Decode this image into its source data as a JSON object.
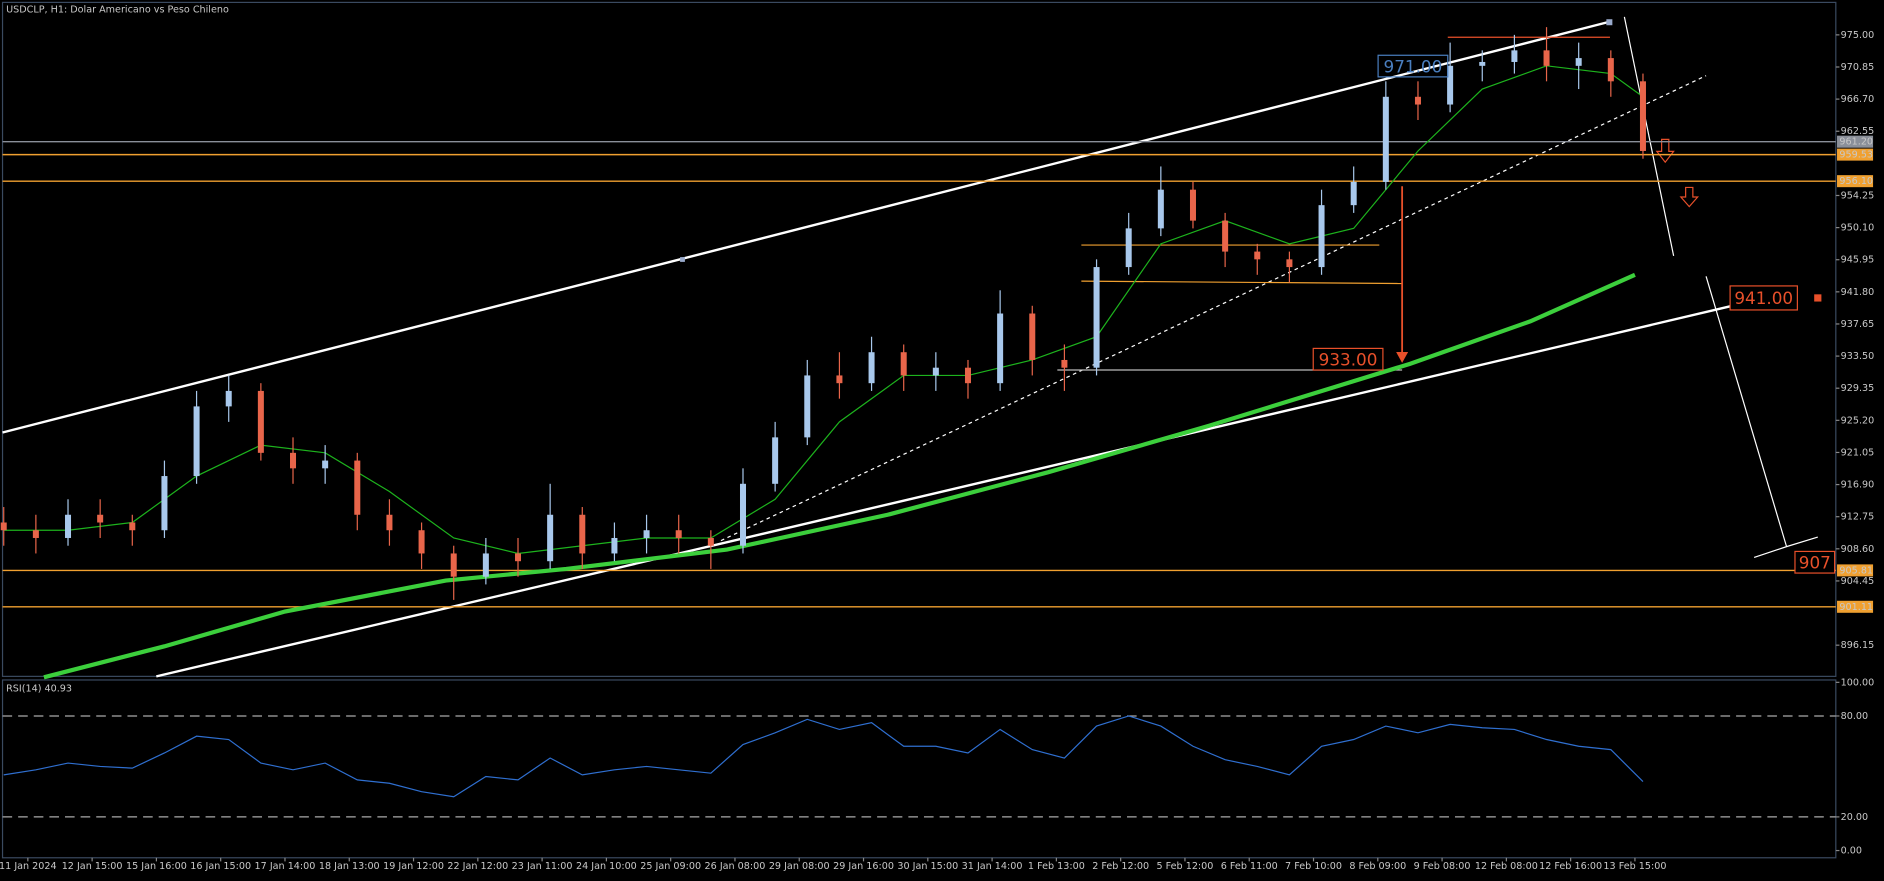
{
  "header": {
    "title": "USDCLP, H1:  Dolar Americano vs Peso Chileno"
  },
  "chart_data": [
    {
      "type": "candlestick",
      "x": [
        0,
        4,
        8,
        12,
        16,
        20,
        24,
        28,
        32,
        36,
        40,
        44,
        48,
        52,
        56,
        60,
        64,
        68,
        72,
        76,
        80,
        84,
        88,
        92,
        96,
        100,
        104,
        108,
        112,
        116,
        120,
        124,
        128,
        132,
        136,
        140,
        144,
        148,
        152,
        156,
        160,
        164,
        168,
        172,
        176,
        180,
        184,
        188,
        192,
        196,
        200,
        204
      ],
      "open": [
        912,
        911,
        910,
        913,
        912,
        911,
        918,
        927,
        929,
        921,
        919,
        920,
        913,
        911,
        908,
        905,
        908,
        907,
        913,
        908,
        910,
        911,
        910,
        909,
        917,
        923,
        931,
        930,
        934,
        931,
        932,
        930,
        939,
        933,
        932,
        945,
        950,
        955,
        951,
        947,
        946,
        945,
        953,
        956,
        967,
        966,
        971,
        971.5,
        973,
        971,
        972,
        969
      ],
      "high": [
        914,
        913,
        915,
        915,
        913,
        920,
        929,
        931,
        930,
        923,
        922,
        921,
        915,
        912,
        909,
        910,
        910,
        917,
        914,
        912,
        913,
        913,
        911,
        919,
        925,
        933,
        934,
        936,
        935,
        934,
        933,
        942,
        940,
        935,
        946,
        952,
        958,
        956,
        952,
        948,
        947,
        955,
        958,
        969,
        969,
        974,
        973,
        975,
        976,
        974,
        973,
        970
      ],
      "low": [
        909,
        908,
        909,
        910,
        909,
        910,
        917,
        925,
        920,
        917,
        917,
        911,
        909,
        906,
        902,
        904,
        905,
        906,
        906,
        907,
        908,
        908,
        906,
        908,
        916,
        922,
        928,
        929,
        929,
        929,
        928,
        929,
        931,
        929,
        931,
        944,
        949,
        950,
        945,
        944,
        943,
        944,
        952,
        955,
        964,
        965,
        969,
        970,
        969,
        968,
        967,
        959
      ],
      "close": [
        911,
        910,
        913,
        912,
        911,
        918,
        927,
        929,
        921,
        919,
        920,
        913,
        911,
        908,
        905,
        908,
        907,
        913,
        908,
        910,
        911,
        910,
        909,
        917,
        923,
        931,
        930,
        934,
        931,
        932,
        930,
        939,
        933,
        932,
        945,
        950,
        955,
        951,
        947,
        946,
        945,
        953,
        956,
        967,
        966,
        971,
        971.5,
        973,
        971,
        972,
        969,
        960
      ],
      "up_color": "#a8c8ec",
      "down_color": "#e8654a",
      "xlim": [
        0,
        228
      ],
      "ylim": [
        892.12,
        979.04
      ],
      "yticks": [
        {
          "value": 975,
          "label": "975.00"
        },
        {
          "value": 970.85,
          "label": "970.85"
        },
        {
          "value": 966.7,
          "label": "966.70"
        },
        {
          "value": 962.55,
          "label": "962.55"
        },
        {
          "value": 954.25,
          "label": "954.25"
        },
        {
          "value": 950.1,
          "label": "950.10"
        },
        {
          "value": 945.95,
          "label": "945.95"
        },
        {
          "value": 941.8,
          "label": "941.80"
        },
        {
          "value": 937.65,
          "label": "937.65"
        },
        {
          "value": 933.5,
          "label": "933.50"
        },
        {
          "value": 929.35,
          "label": "929.35"
        },
        {
          "value": 925.2,
          "label": "925.20"
        },
        {
          "value": 921.05,
          "label": "921.05"
        },
        {
          "value": 916.9,
          "label": "916.90"
        },
        {
          "value": 912.75,
          "label": "912.75"
        },
        {
          "value": 908.6,
          "label": "908.60"
        },
        {
          "value": 904.45,
          "label": "904.45"
        },
        {
          "value": 896.15,
          "label": "896.15"
        }
      ],
      "xticks": [
        {
          "value": 3,
          "label": "11 Jan 2024"
        },
        {
          "value": 11,
          "label": "12 Jan 15:00"
        },
        {
          "value": 19,
          "label": "15 Jan 16:00"
        },
        {
          "value": 27,
          "label": "16 Jan 15:00"
        },
        {
          "value": 35,
          "label": "17 Jan 14:00"
        },
        {
          "value": 43,
          "label": "18 Jan 13:00"
        },
        {
          "value": 51,
          "label": "19 Jan 12:00"
        },
        {
          "value": 59,
          "label": "22 Jan 12:00"
        },
        {
          "value": 67,
          "label": "23 Jan 11:00"
        },
        {
          "value": 75,
          "label": "24 Jan 10:00"
        },
        {
          "value": 83,
          "label": "25 Jan 09:00"
        },
        {
          "value": 91,
          "label": "26 Jan 08:00"
        },
        {
          "value": 99,
          "label": "29 Jan 08:00"
        },
        {
          "value": 107,
          "label": "29 Jan 16:00"
        },
        {
          "value": 115,
          "label": "30 Jan 15:00"
        },
        {
          "value": 123,
          "label": "31 Jan 14:00"
        },
        {
          "value": 131,
          "label": "1 Feb 13:00"
        },
        {
          "value": 139,
          "label": "2 Feb 12:00"
        },
        {
          "value": 147,
          "label": "5 Feb 12:00"
        },
        {
          "value": 155,
          "label": "6 Feb 11:00"
        },
        {
          "value": 163,
          "label": "7 Feb 10:00"
        },
        {
          "value": 171,
          "label": "8 Feb 09:00"
        },
        {
          "value": 179,
          "label": "9 Feb 08:00"
        },
        {
          "value": 187,
          "label": "12 Feb 08:00"
        },
        {
          "value": 195,
          "label": "12 Feb 16:00"
        },
        {
          "value": 203,
          "label": "13 Feb 15:00"
        }
      ],
      "lines": [
        {
          "color": "#1db31d",
          "width": 1,
          "x": [
            0,
            8,
            16,
            24,
            32,
            40,
            48,
            56,
            64,
            72,
            80,
            88,
            96,
            104,
            112,
            120,
            128,
            136,
            144,
            152,
            160,
            168,
            176,
            184,
            192,
            200,
            204
          ],
          "values": [
            911,
            911,
            912,
            918,
            922,
            921,
            916,
            910,
            908,
            909,
            910,
            910,
            915,
            925,
            931,
            931,
            933,
            936,
            948,
            951,
            948,
            950,
            960,
            968,
            971,
            970,
            967
          ]
        },
        {
          "color": "#3ccf3c",
          "width": 3.5,
          "x": [
            5,
            20,
            35,
            55,
            70,
            90,
            110,
            130,
            150,
            175,
            190,
            203
          ],
          "values": [
            892,
            896,
            900.5,
            904.5,
            906,
            908.5,
            913,
            918.5,
            924.5,
            932.5,
            938,
            944
          ]
        }
      ],
      "levels": [
        {
          "value": 961.2,
          "label": "961.20",
          "color": "#8a8f99"
        },
        {
          "value": 959.53,
          "label": "959.53",
          "color": "#f0a030"
        },
        {
          "value": 956.1,
          "label": "956.10",
          "color": "#f0a030"
        },
        {
          "value": 905.81,
          "label": "905.81",
          "color": "#f0a030"
        },
        {
          "value": 901.11,
          "label": "901.11",
          "color": "#f0a030"
        }
      ],
      "annotations": [
        {
          "text": "971.00",
          "color": "#4a7fc0"
        },
        {
          "text": "933.00",
          "color": "#e8502a"
        },
        {
          "text": "941.00",
          "color": "#e8502a"
        },
        {
          "text": "907",
          "color": "#e8502a"
        }
      ]
    },
    {
      "type": "line",
      "title": "RSI(14) 40.93",
      "color": "#2f6fd0",
      "x": [
        0,
        4,
        8,
        12,
        16,
        20,
        24,
        28,
        32,
        36,
        40,
        44,
        48,
        52,
        56,
        60,
        64,
        68,
        72,
        76,
        80,
        84,
        88,
        92,
        96,
        100,
        104,
        108,
        112,
        116,
        120,
        124,
        128,
        132,
        136,
        140,
        144,
        148,
        152,
        156,
        160,
        164,
        168,
        172,
        176,
        180,
        184,
        188,
        192,
        196,
        200,
        204
      ],
      "values": [
        45,
        48,
        52,
        50,
        49,
        58,
        68,
        66,
        52,
        48,
        52,
        42,
        40,
        35,
        32,
        44,
        42,
        55,
        45,
        48,
        50,
        48,
        46,
        63,
        70,
        78,
        72,
        76,
        62,
        62,
        58,
        72,
        60,
        55,
        74,
        80,
        74,
        62,
        54,
        50,
        45,
        62,
        66,
        74,
        70,
        75,
        73,
        72,
        66,
        62,
        60,
        41
      ],
      "xlim": [
        0,
        228
      ],
      "ylim": [
        -4.3,
        101.4
      ],
      "yticks": [
        {
          "value": 100,
          "label": "100.00"
        },
        {
          "value": 80,
          "label": "80.00"
        },
        {
          "value": 20,
          "label": "20.00"
        },
        {
          "value": 0,
          "label": "0.00"
        }
      ],
      "dashed": [
        80,
        20
      ]
    }
  ]
}
